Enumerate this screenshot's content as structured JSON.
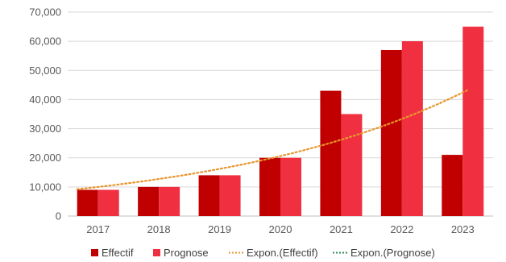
{
  "chart_data": {
    "type": "bar",
    "categories": [
      "2017",
      "2018",
      "2019",
      "2020",
      "2021",
      "2022",
      "2023"
    ],
    "series": [
      {
        "name": "Effectif",
        "values": [
          9000,
          10000,
          14000,
          20000,
          43000,
          57000,
          21000
        ],
        "color": "#c00000"
      },
      {
        "name": "Prognose",
        "values": [
          9000,
          10000,
          14000,
          20000,
          35000,
          60000,
          65000
        ],
        "color": "#f03040"
      }
    ],
    "trendlines": [
      {
        "name": "Expon.(Effectif)",
        "type": "exponential",
        "start": 9200,
        "end": 43500,
        "color": "#e8962e",
        "style": "dotted"
      },
      {
        "name": "Expon.(Prognose)",
        "type": "exponential",
        "color": "#2e8b57",
        "style": "dotted"
      }
    ],
    "title": "",
    "xlabel": "",
    "ylabel": "",
    "ylim": [
      0,
      70000
    ],
    "yticks": [
      "0",
      "10,000",
      "20,000",
      "30,000",
      "40,000",
      "50,000",
      "60,000",
      "70,000"
    ],
    "grid": true,
    "legend": "bottom"
  }
}
